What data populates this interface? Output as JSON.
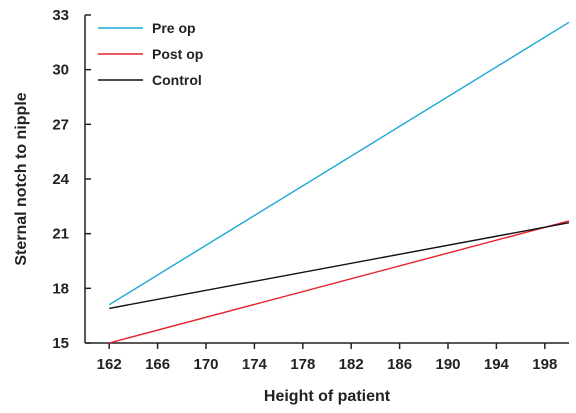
{
  "chart_data": {
    "type": "line",
    "title": "",
    "xlabel": "Height of patient",
    "ylabel": "Sternal notch to nipple",
    "xlim": [
      160,
      200
    ],
    "ylim": [
      15,
      33
    ],
    "x_ticks": [
      162,
      166,
      170,
      174,
      178,
      182,
      186,
      190,
      194,
      198
    ],
    "y_ticks": [
      15,
      18,
      21,
      24,
      27,
      30,
      33
    ],
    "grid": false,
    "legend_position": "top-left",
    "series": [
      {
        "name": "Pre op",
        "color": "#1aa7d6",
        "x": [
          162,
          200
        ],
        "y": [
          17.1,
          32.6
        ]
      },
      {
        "name": "Post op",
        "color": "#e8202a",
        "x": [
          162,
          200
        ],
        "y": [
          15.0,
          21.7
        ]
      },
      {
        "name": "Control",
        "color": "#111111",
        "x": [
          162,
          200
        ],
        "y": [
          16.9,
          21.6
        ]
      }
    ]
  }
}
